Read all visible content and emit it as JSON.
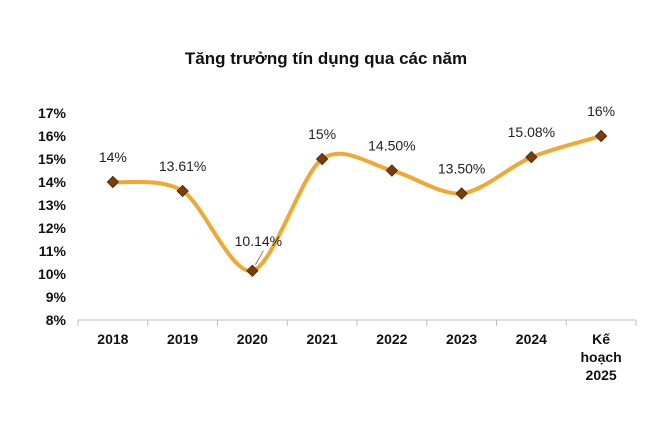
{
  "chart_data": {
    "type": "line",
    "title": "Tăng trưởng tín dụng qua các năm",
    "categories": [
      [
        "2018"
      ],
      [
        "2019"
      ],
      [
        "2020"
      ],
      [
        "2021"
      ],
      [
        "2022"
      ],
      [
        "2023"
      ],
      [
        "2024"
      ],
      [
        "Kế",
        "hoạch",
        "2025"
      ]
    ],
    "series": [
      {
        "values": [
          14,
          13.61,
          10.14,
          15,
          14.5,
          13.5,
          15.08,
          16
        ],
        "labels": [
          "14%",
          "13.61%",
          "10.14%",
          "15%",
          "14.50%",
          "13.50%",
          "15.08%",
          "16%"
        ]
      }
    ],
    "ylim": [
      8,
      17
    ],
    "yticks": [
      "8%",
      "9%",
      "10%",
      "11%",
      "12%",
      "13%",
      "14%",
      "15%",
      "16%",
      "17%"
    ],
    "grid": false,
    "colors": {
      "line": "#f0a830",
      "marker": "#7a3e0a",
      "marker_edge": "#5a2a06"
    }
  }
}
